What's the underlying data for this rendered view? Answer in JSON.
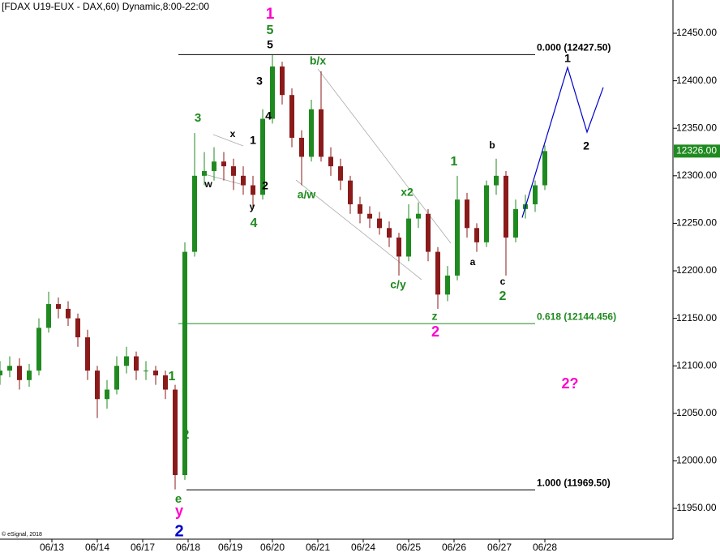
{
  "chart_data": {
    "type": "candlestick",
    "title": "[FDAX U19-EUX - DAX,60) Dynamic,8:00-22:00",
    "credit": "© eSignal, 2018",
    "up_color": "#1f8a1f",
    "down_color": "#8b1a1a",
    "xlim": [
      0,
      207.5
    ],
    "ylim": [
      11917.6,
      12485
    ],
    "xticks": [
      {
        "value": 16,
        "label": "06/13"
      },
      {
        "value": 30,
        "label": "06/14"
      },
      {
        "value": 44,
        "label": "06/17"
      },
      {
        "value": 58,
        "label": "06/18"
      },
      {
        "value": 71,
        "label": "06/19"
      },
      {
        "value": 84,
        "label": "06/20"
      },
      {
        "value": 98,
        "label": "06/21"
      },
      {
        "value": 112,
        "label": "06/24"
      },
      {
        "value": 126,
        "label": "06/25"
      },
      {
        "value": 140,
        "label": "06/26"
      },
      {
        "value": 154,
        "label": "06/27"
      },
      {
        "value": 168,
        "label": "06/28"
      }
    ],
    "yticks": [
      {
        "value": 11950,
        "label": "11950.00"
      },
      {
        "value": 12000,
        "label": "12000.00"
      },
      {
        "value": 12050,
        "label": "12050.00"
      },
      {
        "value": 12100,
        "label": "12100.00"
      },
      {
        "value": 12150,
        "label": "12150.00"
      },
      {
        "value": 12200,
        "label": "12200.00"
      },
      {
        "value": 12250,
        "label": "12250.00"
      },
      {
        "value": 12300,
        "label": "12300.00"
      },
      {
        "value": 12350,
        "label": "12350.00"
      },
      {
        "value": 12400,
        "label": "12400.00"
      },
      {
        "value": 12450,
        "label": "12450.00"
      }
    ],
    "x": [
      0,
      3,
      6,
      9,
      12,
      15,
      18,
      21,
      24,
      27,
      30,
      33,
      36,
      39,
      42,
      45,
      48,
      51,
      54,
      57,
      60,
      63,
      66,
      69,
      72,
      75,
      78,
      81,
      84,
      87,
      90,
      93,
      96,
      99,
      102,
      105,
      108,
      111,
      114,
      117,
      120,
      123,
      126,
      129,
      132,
      135,
      138,
      141,
      144,
      147,
      150,
      153,
      156,
      159,
      162,
      165,
      168
    ],
    "open": [
      12090,
      12095,
      12100,
      12085,
      12095,
      12140,
      12165,
      12160,
      12150,
      12130,
      12095,
      12065,
      12075,
      12100,
      12110,
      12095,
      12095,
      12090,
      12075,
      11985,
      12220,
      12300,
      12305,
      12315,
      12310,
      12300,
      12290,
      12280,
      12360,
      12415,
      12385,
      12340,
      12320,
      12370,
      12320,
      12310,
      12295,
      12270,
      12260,
      12255,
      12245,
      12235,
      12215,
      12255,
      12260,
      12220,
      12175,
      12195,
      12275,
      12245,
      12230,
      12290,
      12300,
      12235,
      12265,
      12270,
      12290
    ],
    "high": [
      12105,
      12110,
      12108,
      12102,
      12150,
      12178,
      12172,
      12168,
      12155,
      12138,
      12100,
      12085,
      12110,
      12120,
      12115,
      12105,
      12100,
      12095,
      12080,
      12230,
      12345,
      12325,
      12330,
      12325,
      12318,
      12310,
      12300,
      12370,
      12427,
      12420,
      12392,
      12348,
      12380,
      12410,
      12330,
      12318,
      12300,
      12278,
      12268,
      12262,
      12252,
      12240,
      12270,
      12272,
      12265,
      12225,
      12205,
      12300,
      12282,
      12250,
      12295,
      12318,
      12305,
      12275,
      12280,
      12295,
      12332
    ],
    "low": [
      12080,
      12088,
      12075,
      12078,
      12090,
      12135,
      12150,
      12142,
      12120,
      12085,
      12045,
      12055,
      12070,
      12092,
      12085,
      12085,
      12080,
      12065,
      11970,
      11980,
      12215,
      12290,
      12295,
      12295,
      12285,
      12280,
      12265,
      12275,
      12355,
      12375,
      12330,
      12290,
      12315,
      12315,
      12300,
      12285,
      12260,
      12250,
      12245,
      12238,
      12225,
      12195,
      12210,
      12245,
      12210,
      12160,
      12168,
      12190,
      12235,
      12220,
      12225,
      12280,
      12195,
      12230,
      12255,
      12262,
      12285
    ],
    "close": [
      12095,
      12100,
      12085,
      12095,
      12140,
      12165,
      12160,
      12150,
      12130,
      12095,
      12065,
      12075,
      12100,
      12110,
      12095,
      12095,
      12090,
      12075,
      11985,
      12220,
      12300,
      12305,
      12315,
      12310,
      12300,
      12290,
      12280,
      12360,
      12415,
      12385,
      12340,
      12320,
      12370,
      12320,
      12310,
      12295,
      12270,
      12260,
      12255,
      12245,
      12235,
      12215,
      12255,
      12260,
      12220,
      12175,
      12195,
      12275,
      12245,
      12230,
      12290,
      12300,
      12235,
      12265,
      12270,
      12290,
      12326
    ],
    "last_price": {
      "value": 12326,
      "label": "12326.00",
      "color": "#1f8a1f"
    },
    "levels": [
      {
        "value": 12427.5,
        "label": "0.000 (12427.50)",
        "color": "#000000"
      },
      {
        "value": 12144.456,
        "label": "0.618 (12144.456)",
        "color": "#1f8a1f"
      },
      {
        "value": 11969.5,
        "label": "1.000 (11969.50)",
        "color": "#000000"
      }
    ],
    "projection": {
      "color": "#0000cc",
      "x": [
        161,
        175,
        181,
        186
      ],
      "values": [
        12256,
        12414,
        12346,
        12393
      ]
    },
    "annotations": [
      {
        "text": "1",
        "color": "#ff00cc"
      },
      {
        "text": "5",
        "color": "#1f8a1f"
      },
      {
        "text": "5",
        "color": "#000000"
      },
      {
        "text": "3",
        "color": "#000000"
      },
      {
        "text": "4",
        "color": "#000000"
      },
      {
        "text": "b/x",
        "color": "#1f8a1f"
      },
      {
        "text": "3",
        "color": "#1f8a1f"
      },
      {
        "text": "x",
        "color": "#000000"
      },
      {
        "text": "1",
        "color": "#000000"
      },
      {
        "text": "w",
        "color": "#000000"
      },
      {
        "text": "2",
        "color": "#000000"
      },
      {
        "text": "y",
        "color": "#000000"
      },
      {
        "text": "4",
        "color": "#1f8a1f"
      },
      {
        "text": "a/w",
        "color": "#1f8a1f"
      },
      {
        "text": "x2",
        "color": "#1f8a1f"
      },
      {
        "text": "c/y",
        "color": "#1f8a1f"
      },
      {
        "text": "z",
        "color": "#1f8a1f"
      },
      {
        "text": "2",
        "color": "#ff00cc"
      },
      {
        "text": "1",
        "color": "#1f8a1f"
      },
      {
        "text": "b",
        "color": "#000000"
      },
      {
        "text": "a",
        "color": "#000000"
      },
      {
        "text": "c",
        "color": "#000000"
      },
      {
        "text": "2",
        "color": "#1f8a1f"
      },
      {
        "text": "1",
        "color": "#000000"
      },
      {
        "text": "2",
        "color": "#000000"
      },
      {
        "text": "2?",
        "color": "#ff00cc"
      },
      {
        "text": "1",
        "color": "#1f8a1f"
      },
      {
        "text": "2",
        "color": "#1f8a1f"
      },
      {
        "text": "e",
        "color": "#1f8a1f"
      },
      {
        "text": "y",
        "color": "#ff00cc"
      },
      {
        "text": "2",
        "color": "#0000cc"
      }
    ]
  }
}
